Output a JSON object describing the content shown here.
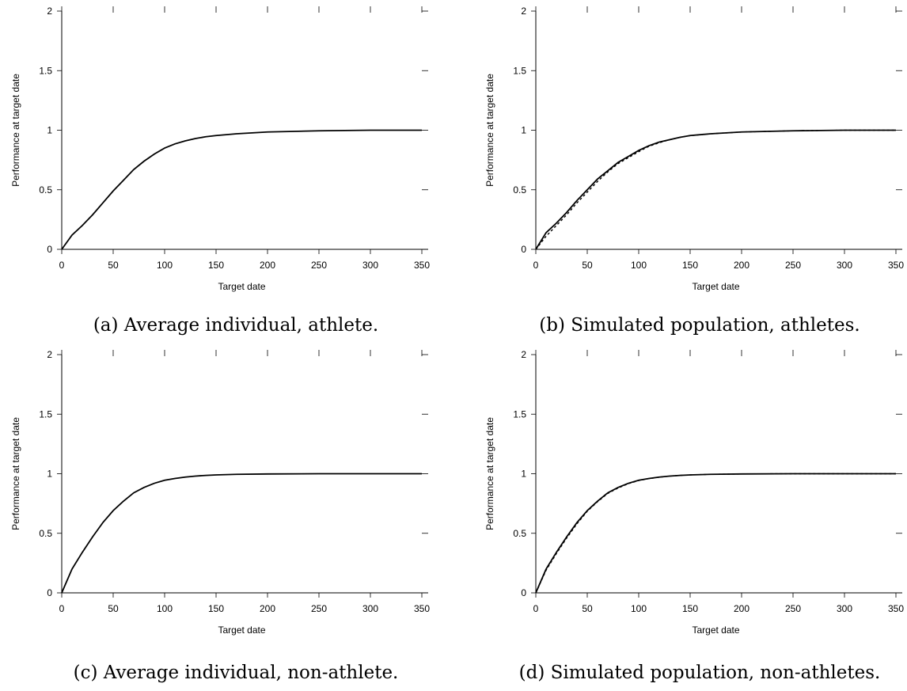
{
  "chart_data": [
    {
      "type": "line",
      "caption": "(a) Average individual, athlete.",
      "xlabel": "Target date",
      "ylabel": "Performance at target date",
      "xlim": [
        0,
        350
      ],
      "ylim": [
        0,
        2
      ],
      "xticks": [
        "0",
        "50",
        "100",
        "150",
        "200",
        "250",
        "300",
        "350"
      ],
      "yticks": [
        "0",
        "0.5",
        "1",
        "1.5",
        "2"
      ],
      "grid": false,
      "series": [
        {
          "style": "solid",
          "x": [
            0,
            10,
            20,
            30,
            40,
            50,
            60,
            70,
            80,
            90,
            100,
            110,
            120,
            130,
            140,
            150,
            170,
            200,
            250,
            300,
            350
          ],
          "y": [
            0,
            0.12,
            0.2,
            0.29,
            0.39,
            0.49,
            0.58,
            0.67,
            0.74,
            0.8,
            0.85,
            0.885,
            0.91,
            0.93,
            0.945,
            0.955,
            0.97,
            0.985,
            0.995,
            1.0,
            1.0
          ]
        }
      ]
    },
    {
      "type": "line",
      "caption": "(b) Simulated population, athletes.",
      "xlabel": "Target date",
      "ylabel": "Performance at target date",
      "xlim": [
        0,
        350
      ],
      "ylim": [
        0,
        2
      ],
      "xticks": [
        "0",
        "50",
        "100",
        "150",
        "200",
        "250",
        "300",
        "350"
      ],
      "yticks": [
        "0",
        "0.5",
        "1",
        "1.5",
        "2"
      ],
      "grid": false,
      "series": [
        {
          "style": "solid",
          "x": [
            0,
            10,
            20,
            30,
            40,
            50,
            60,
            70,
            80,
            90,
            100,
            110,
            120,
            130,
            140,
            150,
            170,
            200,
            250,
            300,
            350
          ],
          "y": [
            0,
            0.14,
            0.22,
            0.31,
            0.41,
            0.5,
            0.59,
            0.66,
            0.73,
            0.78,
            0.83,
            0.87,
            0.9,
            0.92,
            0.94,
            0.955,
            0.97,
            0.985,
            0.995,
            1.0,
            1.0
          ]
        },
        {
          "style": "dashed",
          "x": [
            0,
            10,
            20,
            30,
            40,
            50,
            60,
            70,
            80,
            90,
            100,
            110,
            120,
            130,
            140,
            150,
            170,
            200,
            250,
            300,
            350
          ],
          "y": [
            0,
            0.11,
            0.2,
            0.29,
            0.39,
            0.48,
            0.57,
            0.65,
            0.72,
            0.77,
            0.82,
            0.865,
            0.895,
            0.92,
            0.94,
            0.955,
            0.97,
            0.985,
            0.995,
            1.0,
            1.0
          ]
        }
      ]
    },
    {
      "type": "line",
      "caption": "(c) Average individual, non-athlete.",
      "xlabel": "Target date",
      "ylabel": "Performance at target date",
      "xlim": [
        0,
        350
      ],
      "ylim": [
        0,
        2
      ],
      "xticks": [
        "0",
        "50",
        "100",
        "150",
        "200",
        "250",
        "300",
        "350"
      ],
      "yticks": [
        "0",
        "0.5",
        "1",
        "1.5",
        "2"
      ],
      "grid": false,
      "series": [
        {
          "style": "solid",
          "x": [
            0,
            10,
            20,
            30,
            40,
            50,
            60,
            70,
            80,
            90,
            100,
            110,
            120,
            130,
            140,
            150,
            170,
            200,
            250,
            300,
            350
          ],
          "y": [
            0,
            0.2,
            0.34,
            0.47,
            0.59,
            0.69,
            0.77,
            0.84,
            0.885,
            0.92,
            0.945,
            0.96,
            0.972,
            0.98,
            0.986,
            0.99,
            0.995,
            0.998,
            1.0,
            1.0,
            1.0
          ]
        }
      ]
    },
    {
      "type": "line",
      "caption": "(d) Simulated population, non-athletes.",
      "xlabel": "Target date",
      "ylabel": "Performance at target date",
      "xlim": [
        0,
        350
      ],
      "ylim": [
        0,
        2
      ],
      "xticks": [
        "0",
        "50",
        "100",
        "150",
        "200",
        "250",
        "300",
        "350"
      ],
      "yticks": [
        "0",
        "0.5",
        "1",
        "1.5",
        "2"
      ],
      "grid": false,
      "series": [
        {
          "style": "solid",
          "x": [
            0,
            10,
            20,
            30,
            40,
            50,
            60,
            70,
            80,
            90,
            100,
            110,
            120,
            130,
            140,
            150,
            170,
            200,
            250,
            300,
            350
          ],
          "y": [
            0,
            0.2,
            0.34,
            0.47,
            0.59,
            0.69,
            0.77,
            0.84,
            0.885,
            0.92,
            0.945,
            0.96,
            0.972,
            0.98,
            0.986,
            0.99,
            0.995,
            0.998,
            1.0,
            1.0,
            1.0
          ]
        },
        {
          "style": "dashed",
          "x": [
            0,
            10,
            20,
            30,
            40,
            50,
            60,
            70,
            80,
            90,
            100,
            110,
            120,
            130,
            140,
            150,
            170,
            200,
            250,
            300,
            350
          ],
          "y": [
            0,
            0.19,
            0.33,
            0.46,
            0.58,
            0.685,
            0.765,
            0.835,
            0.88,
            0.917,
            0.943,
            0.959,
            0.971,
            0.98,
            0.986,
            0.99,
            0.995,
            0.998,
            1.0,
            1.0,
            1.0
          ]
        }
      ]
    }
  ]
}
